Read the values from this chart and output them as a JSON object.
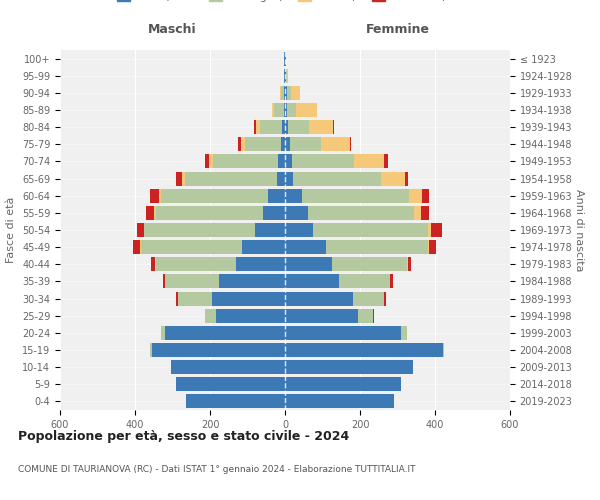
{
  "age_groups": [
    "0-4",
    "5-9",
    "10-14",
    "15-19",
    "20-24",
    "25-29",
    "30-34",
    "35-39",
    "40-44",
    "45-49",
    "50-54",
    "55-59",
    "60-64",
    "65-69",
    "70-74",
    "75-79",
    "80-84",
    "85-89",
    "90-94",
    "95-99",
    "100+"
  ],
  "birth_years": [
    "2019-2023",
    "2014-2018",
    "2009-2013",
    "2004-2008",
    "1999-2003",
    "1994-1998",
    "1989-1993",
    "1984-1988",
    "1979-1983",
    "1974-1978",
    "1969-1973",
    "1964-1968",
    "1959-1963",
    "1954-1958",
    "1949-1953",
    "1944-1948",
    "1939-1943",
    "1934-1938",
    "1929-1933",
    "1924-1928",
    "≤ 1923"
  ],
  "male": {
    "celibi": [
      265,
      290,
      305,
      355,
      320,
      185,
      195,
      175,
      130,
      115,
      80,
      60,
      45,
      22,
      18,
      12,
      8,
      4,
      2,
      2,
      2
    ],
    "coniugati": [
      0,
      0,
      0,
      5,
      12,
      28,
      90,
      145,
      215,
      270,
      295,
      285,
      285,
      245,
      175,
      95,
      60,
      25,
      8,
      2,
      0
    ],
    "vedovi": [
      0,
      0,
      0,
      0,
      0,
      0,
      0,
      1,
      1,
      2,
      2,
      4,
      5,
      8,
      10,
      10,
      10,
      5,
      3,
      0,
      0
    ],
    "divorziati": [
      0,
      0,
      0,
      0,
      0,
      1,
      5,
      5,
      12,
      18,
      18,
      22,
      25,
      15,
      10,
      8,
      5,
      0,
      0,
      0,
      0
    ]
  },
  "female": {
    "nubili": [
      290,
      310,
      340,
      420,
      310,
      195,
      180,
      145,
      125,
      110,
      75,
      60,
      45,
      22,
      18,
      12,
      8,
      5,
      5,
      2,
      2
    ],
    "coniugate": [
      0,
      0,
      0,
      5,
      15,
      40,
      85,
      135,
      200,
      270,
      305,
      285,
      285,
      235,
      165,
      85,
      55,
      25,
      10,
      2,
      0
    ],
    "vedove": [
      0,
      0,
      0,
      0,
      0,
      0,
      0,
      1,
      2,
      4,
      8,
      18,
      35,
      62,
      80,
      75,
      65,
      55,
      25,
      5,
      1
    ],
    "divorziate": [
      0,
      0,
      0,
      0,
      0,
      2,
      5,
      8,
      10,
      18,
      30,
      22,
      20,
      10,
      12,
      5,
      2,
      0,
      0,
      0,
      0
    ]
  },
  "colors": {
    "celibi": "#3d7ab5",
    "coniugati": "#b5c9a0",
    "vedovi": "#f5c87a",
    "divorziati": "#cc2222"
  },
  "xlim": 600,
  "title": "Popolazione per età, sesso e stato civile - 2024",
  "subtitle": "COMUNE DI TAURIANOVA (RC) - Dati ISTAT 1° gennaio 2024 - Elaborazione TUTTITALIA.IT",
  "ylabel": "Fasce di età",
  "right_ylabel": "Anni di nascita",
  "bg_color": "#f0f0f0"
}
